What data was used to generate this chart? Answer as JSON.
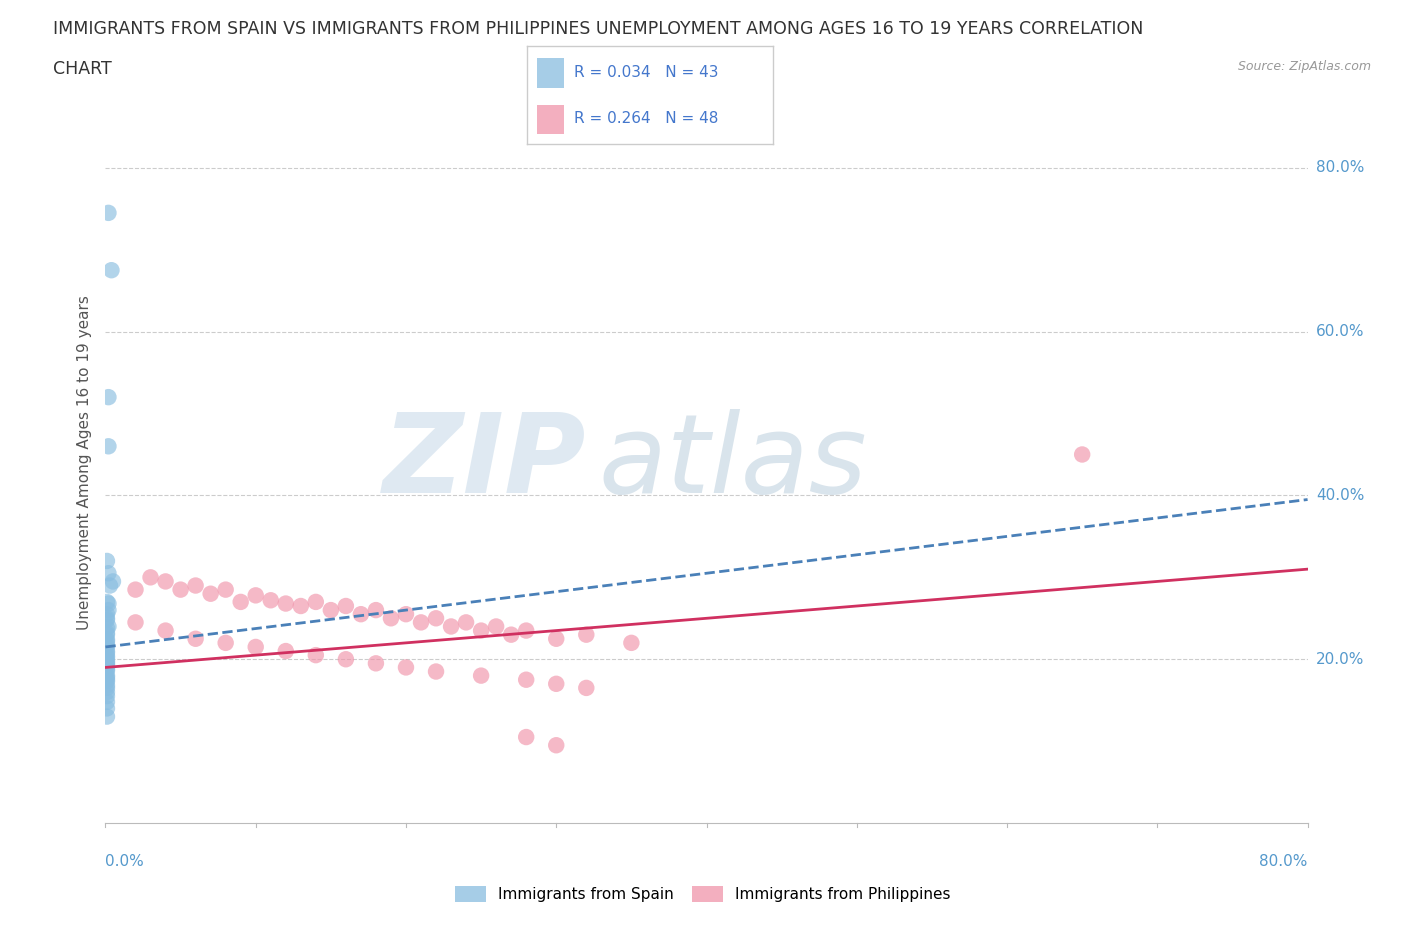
{
  "title_line1": "IMMIGRANTS FROM SPAIN VS IMMIGRANTS FROM PHILIPPINES UNEMPLOYMENT AMONG AGES 16 TO 19 YEARS CORRELATION",
  "title_line2": "CHART",
  "source": "Source: ZipAtlas.com",
  "ylabel": "Unemployment Among Ages 16 to 19 years",
  "ytick_values": [
    0.2,
    0.4,
    0.6,
    0.8
  ],
  "xlim": [
    0.0,
    0.8
  ],
  "ylim": [
    0.0,
    0.88
  ],
  "legend_bottom": [
    "Immigrants from Spain",
    "Immigrants from Philippines"
  ],
  "spain_color": "#89bde0",
  "philippines_color": "#f094aa",
  "spain_line_color": "#4a80b8",
  "philippines_line_color": "#d03060",
  "background_color": "#ffffff",
  "grid_color": "#cccccc",
  "title_fontsize": 12.5,
  "axis_label_fontsize": 11,
  "spain_x": [
    0.002,
    0.004,
    0.002,
    0.002,
    0.001,
    0.002,
    0.003,
    0.005,
    0.001,
    0.002,
    0.001,
    0.002,
    0.001,
    0.001,
    0.001,
    0.002,
    0.001,
    0.001,
    0.001,
    0.001,
    0.001,
    0.001,
    0.001,
    0.001,
    0.001,
    0.001,
    0.001,
    0.001,
    0.001,
    0.001,
    0.001,
    0.001,
    0.001,
    0.001,
    0.001,
    0.001,
    0.001,
    0.001,
    0.001,
    0.001,
    0.001,
    0.001,
    0.001
  ],
  "spain_y": [
    0.745,
    0.675,
    0.52,
    0.46,
    0.32,
    0.305,
    0.29,
    0.295,
    0.27,
    0.268,
    0.255,
    0.26,
    0.248,
    0.25,
    0.238,
    0.24,
    0.23,
    0.232,
    0.222,
    0.224,
    0.215,
    0.218,
    0.21,
    0.208,
    0.202,
    0.204,
    0.198,
    0.196,
    0.192,
    0.194,
    0.188,
    0.186,
    0.18,
    0.178,
    0.175,
    0.173,
    0.168,
    0.165,
    0.16,
    0.155,
    0.148,
    0.14,
    0.13
  ],
  "philippines_x": [
    0.02,
    0.03,
    0.04,
    0.05,
    0.06,
    0.07,
    0.08,
    0.09,
    0.1,
    0.11,
    0.12,
    0.13,
    0.14,
    0.15,
    0.16,
    0.17,
    0.18,
    0.19,
    0.2,
    0.21,
    0.22,
    0.23,
    0.24,
    0.25,
    0.26,
    0.27,
    0.28,
    0.3,
    0.32,
    0.35,
    0.02,
    0.04,
    0.06,
    0.08,
    0.1,
    0.12,
    0.14,
    0.16,
    0.18,
    0.2,
    0.22,
    0.25,
    0.28,
    0.3,
    0.32,
    0.65,
    0.28,
    0.3
  ],
  "philippines_y": [
    0.285,
    0.3,
    0.295,
    0.285,
    0.29,
    0.28,
    0.285,
    0.27,
    0.278,
    0.272,
    0.268,
    0.265,
    0.27,
    0.26,
    0.265,
    0.255,
    0.26,
    0.25,
    0.255,
    0.245,
    0.25,
    0.24,
    0.245,
    0.235,
    0.24,
    0.23,
    0.235,
    0.225,
    0.23,
    0.22,
    0.245,
    0.235,
    0.225,
    0.22,
    0.215,
    0.21,
    0.205,
    0.2,
    0.195,
    0.19,
    0.185,
    0.18,
    0.175,
    0.17,
    0.165,
    0.45,
    0.105,
    0.095
  ],
  "spain_line_x0": 0.0,
  "spain_line_x1": 0.8,
  "spain_line_y0": 0.215,
  "spain_line_y1": 0.395,
  "phil_line_x0": 0.0,
  "phil_line_x1": 0.8,
  "phil_line_y0": 0.19,
  "phil_line_y1": 0.31
}
